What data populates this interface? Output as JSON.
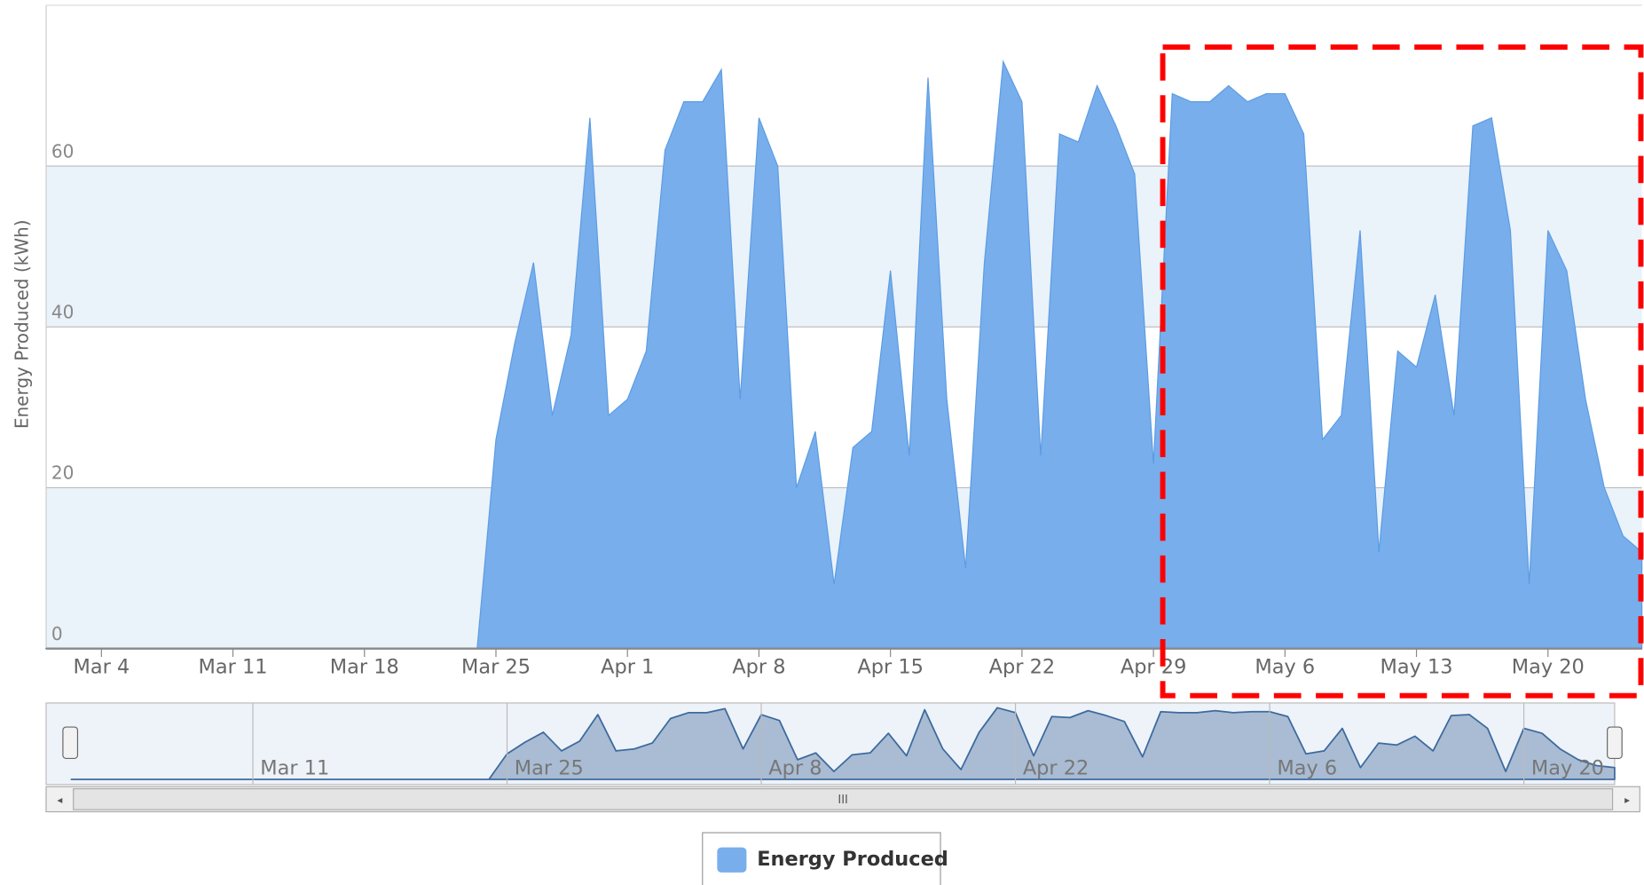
{
  "chart_data": {
    "type": "area",
    "y_axis_label": "Energy Produced (kWh)",
    "x": [
      "Mar 1",
      "Mar 2",
      "Mar 3",
      "Mar 4",
      "Mar 5",
      "Mar 6",
      "Mar 7",
      "Mar 8",
      "Mar 9",
      "Mar 10",
      "Mar 11",
      "Mar 12",
      "Mar 13",
      "Mar 14",
      "Mar 15",
      "Mar 16",
      "Mar 17",
      "Mar 18",
      "Mar 19",
      "Mar 20",
      "Mar 21",
      "Mar 22",
      "Mar 23",
      "Mar 24",
      "Mar 25",
      "Mar 26",
      "Mar 27",
      "Mar 28",
      "Mar 29",
      "Mar 30",
      "Mar 31",
      "Apr 1",
      "Apr 2",
      "Apr 3",
      "Apr 4",
      "Apr 5",
      "Apr 6",
      "Apr 7",
      "Apr 8",
      "Apr 9",
      "Apr 10",
      "Apr 11",
      "Apr 12",
      "Apr 13",
      "Apr 14",
      "Apr 15",
      "Apr 16",
      "Apr 17",
      "Apr 18",
      "Apr 19",
      "Apr 20",
      "Apr 21",
      "Apr 22",
      "Apr 23",
      "Apr 24",
      "Apr 25",
      "Apr 26",
      "Apr 27",
      "Apr 28",
      "Apr 29",
      "Apr 30",
      "May 1",
      "May 2",
      "May 3",
      "May 4",
      "May 5",
      "May 6",
      "May 7",
      "May 8",
      "May 9",
      "May 10",
      "May 11",
      "May 12",
      "May 13",
      "May 14",
      "May 15",
      "May 16",
      "May 17",
      "May 18",
      "May 19",
      "May 20",
      "May 21",
      "May 22",
      "May 23",
      "May 24",
      "May 25"
    ],
    "series": [
      {
        "name": "Energy Produced",
        "color": "#78aeec",
        "values": [
          0,
          0,
          0,
          0,
          0,
          0,
          0,
          0,
          0,
          0,
          0,
          0,
          0,
          0,
          0,
          0,
          0,
          0,
          0,
          0,
          0,
          0,
          0,
          0,
          26,
          38,
          48,
          29,
          39,
          66,
          29,
          31,
          37,
          62,
          68,
          68,
          72,
          31,
          66,
          60,
          20,
          27,
          8,
          25,
          27,
          47,
          24,
          71,
          31,
          10,
          48,
          73,
          68,
          24,
          64,
          63,
          70,
          65,
          59,
          23,
          69,
          68,
          68,
          70,
          68,
          69,
          69,
          64,
          26,
          29,
          52,
          12,
          37,
          35,
          44,
          29,
          65,
          66,
          52,
          8,
          52,
          47,
          31,
          20,
          14,
          12
        ]
      }
    ],
    "ylim": [
      0,
      80
    ],
    "yticks": [
      0,
      20,
      40,
      60
    ],
    "xticks": [
      "Mar 4",
      "Mar 11",
      "Mar 18",
      "Mar 25",
      "Apr 1",
      "Apr 8",
      "Apr 15",
      "Apr 22",
      "Apr 29",
      "May 6",
      "May 13",
      "May 20"
    ],
    "navigator_xticks": [
      "Mar 11",
      "Mar 25",
      "Apr 8",
      "Apr 22",
      "May 6",
      "May 20"
    ],
    "alternate_bands": true
  }
}
